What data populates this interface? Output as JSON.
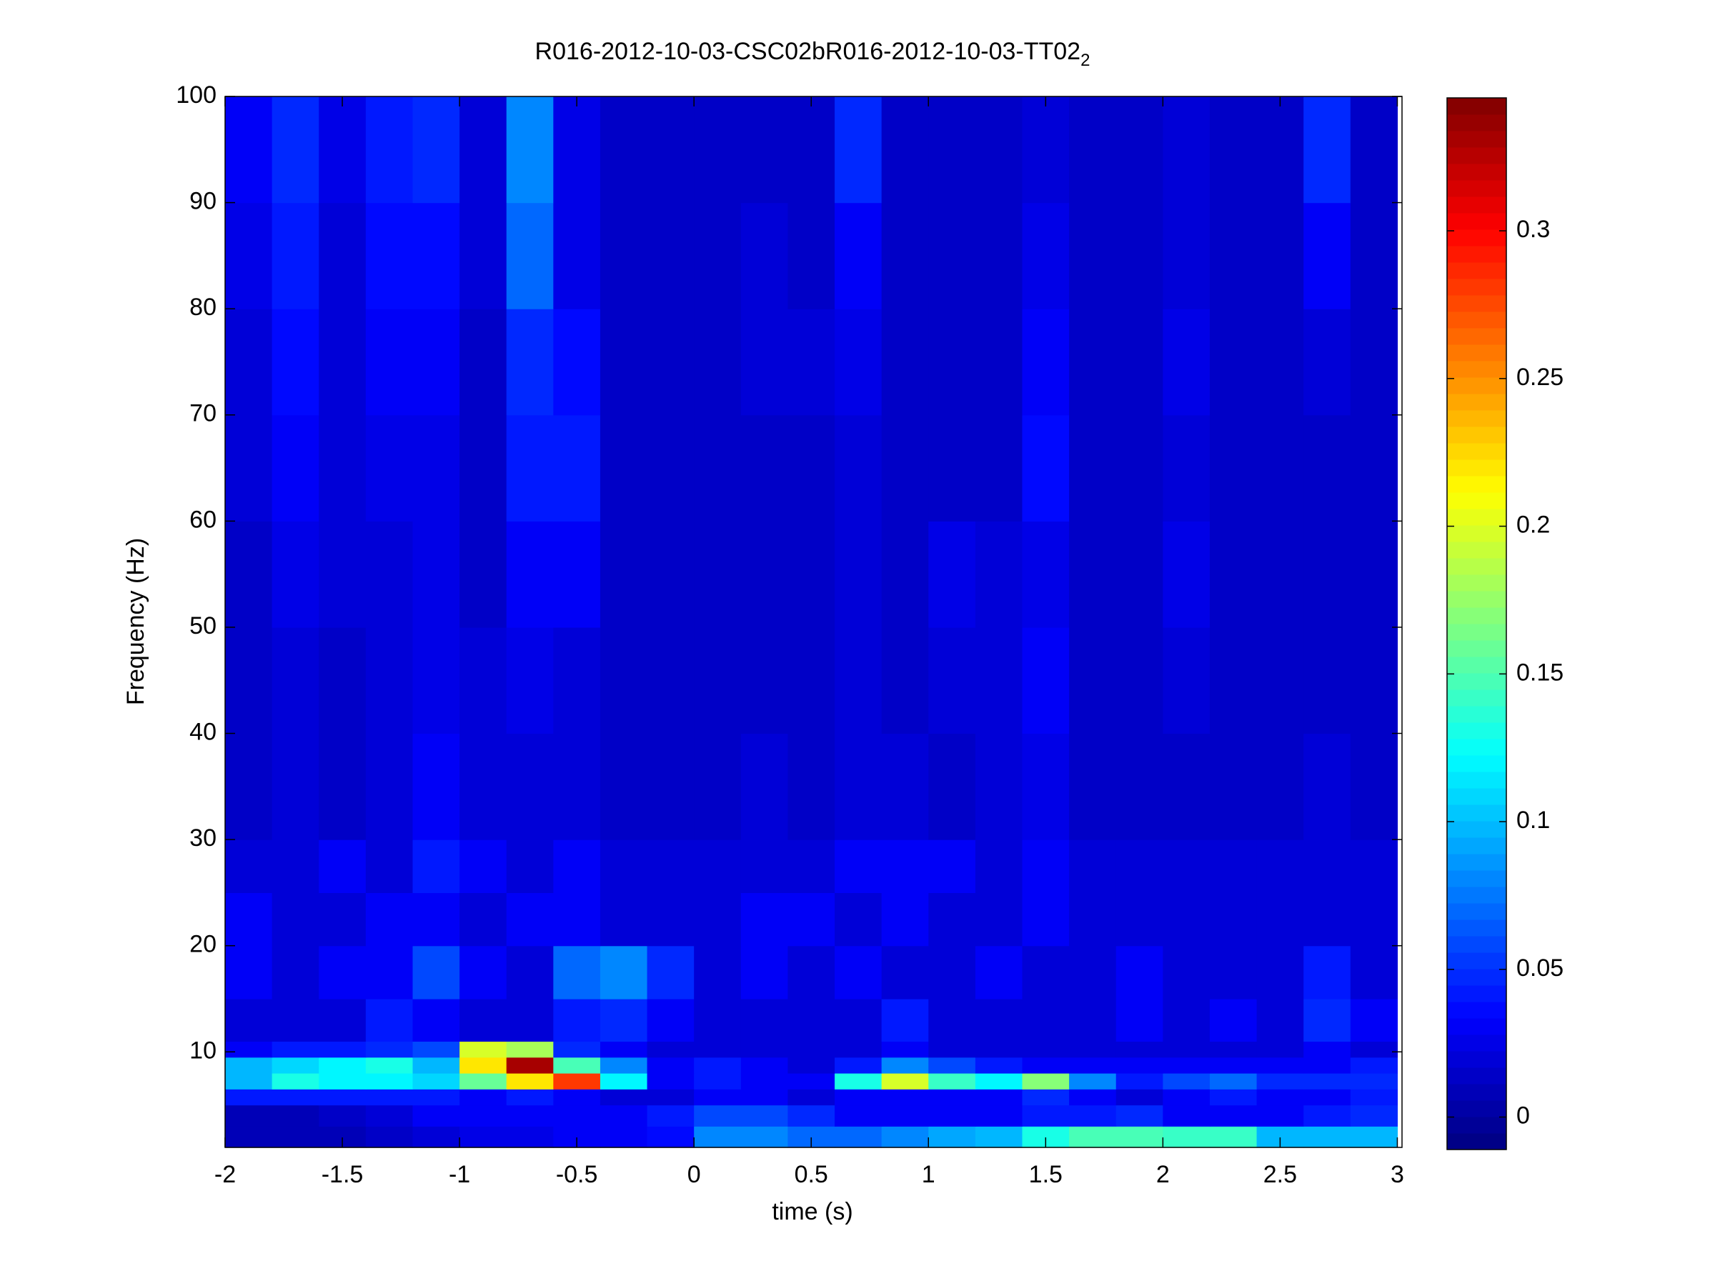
{
  "chart_data": {
    "type": "heatmap",
    "title": "R016-2012-10-03-CSC02bR016-2012-10-03-TT02",
    "title_subscript": "2",
    "x_label": "time (s)",
    "y_label": "Frequency (Hz)",
    "colormap": "jet",
    "xlim": [
      -2,
      3.02
    ],
    "ylim": [
      1,
      100
    ],
    "clim": [
      -0.011,
      0.345
    ],
    "xticks": [
      -2,
      -1.5,
      -1,
      -0.5,
      0,
      0.5,
      1,
      1.5,
      2,
      2.5,
      3
    ],
    "yticks": [
      10,
      20,
      30,
      40,
      50,
      60,
      70,
      80,
      90,
      100
    ],
    "cticks": [
      0,
      0.05,
      0.1,
      0.15,
      0.2,
      0.25,
      0.3
    ],
    "xbins": [
      -2,
      -1.8,
      -1.6,
      -1.4,
      -1.2,
      -1,
      -0.8,
      -0.6,
      -0.4,
      -0.2,
      0,
      0.2,
      0.4,
      0.6,
      0.8,
      1,
      1.2,
      1.4,
      1.6,
      1.8,
      2,
      2.2,
      2.4,
      2.6,
      2.8,
      3
    ],
    "ybins": [
      1,
      3,
      5,
      6.5,
      8,
      9.5,
      11,
      15,
      20,
      25,
      30,
      40,
      50,
      60,
      70,
      80,
      90,
      100
    ],
    "values": [
      [
        0.01,
        0.01,
        0.01,
        0.015,
        0.02,
        0.025,
        0.025,
        0.03,
        0.03,
        0.035,
        0.08,
        0.08,
        0.07,
        0.07,
        0.08,
        0.09,
        0.1,
        0.13,
        0.15,
        0.15,
        0.14,
        0.14,
        0.1,
        0.1,
        0.1
      ],
      [
        0.01,
        0.01,
        0.015,
        0.02,
        0.03,
        0.03,
        0.03,
        0.03,
        0.03,
        0.04,
        0.06,
        0.06,
        0.05,
        0.03,
        0.03,
        0.03,
        0.03,
        0.04,
        0.04,
        0.05,
        0.03,
        0.03,
        0.03,
        0.04,
        0.05
      ],
      [
        0.04,
        0.04,
        0.04,
        0.04,
        0.04,
        0.03,
        0.04,
        0.03,
        0.02,
        0.02,
        0.03,
        0.03,
        0.02,
        0.03,
        0.03,
        0.03,
        0.03,
        0.05,
        0.03,
        0.02,
        0.03,
        0.04,
        0.03,
        0.03,
        0.04
      ],
      [
        0.1,
        0.13,
        0.12,
        0.12,
        0.11,
        0.16,
        0.22,
        0.28,
        0.12,
        0.03,
        0.04,
        0.03,
        0.03,
        0.13,
        0.2,
        0.14,
        0.12,
        0.17,
        0.08,
        0.04,
        0.06,
        0.07,
        0.05,
        0.05,
        0.05
      ],
      [
        0.1,
        0.11,
        0.12,
        0.13,
        0.1,
        0.22,
        0.33,
        0.15,
        0.08,
        0.03,
        0.04,
        0.03,
        0.02,
        0.04,
        0.08,
        0.06,
        0.04,
        0.03,
        0.03,
        0.03,
        0.03,
        0.03,
        0.03,
        0.03,
        0.04
      ],
      [
        0.03,
        0.04,
        0.04,
        0.05,
        0.06,
        0.2,
        0.18,
        0.05,
        0.03,
        0.02,
        0.02,
        0.02,
        0.02,
        0.02,
        0.03,
        0.02,
        0.02,
        0.02,
        0.02,
        0.02,
        0.02,
        0.02,
        0.02,
        0.03,
        0.02
      ],
      [
        0.02,
        0.02,
        0.02,
        0.04,
        0.03,
        0.02,
        0.02,
        0.04,
        0.05,
        0.03,
        0.02,
        0.02,
        0.02,
        0.02,
        0.04,
        0.02,
        0.02,
        0.02,
        0.02,
        0.03,
        0.02,
        0.03,
        0.02,
        0.05,
        0.03
      ],
      [
        0.03,
        0.02,
        0.03,
        0.03,
        0.06,
        0.03,
        0.02,
        0.07,
        0.08,
        0.05,
        0.02,
        0.03,
        0.02,
        0.03,
        0.02,
        0.02,
        0.03,
        0.02,
        0.02,
        0.03,
        0.02,
        0.02,
        0.02,
        0.04,
        0.02
      ],
      [
        0.03,
        0.02,
        0.02,
        0.03,
        0.03,
        0.02,
        0.03,
        0.03,
        0.02,
        0.02,
        0.02,
        0.03,
        0.03,
        0.02,
        0.03,
        0.02,
        0.02,
        0.03,
        0.02,
        0.02,
        0.02,
        0.02,
        0.02,
        0.02,
        0.02
      ],
      [
        0.02,
        0.02,
        0.03,
        0.02,
        0.04,
        0.03,
        0.02,
        0.03,
        0.02,
        0.02,
        0.02,
        0.02,
        0.02,
        0.03,
        0.03,
        0.03,
        0.02,
        0.03,
        0.02,
        0.02,
        0.02,
        0.02,
        0.02,
        0.02,
        0.02
      ],
      [
        0.015,
        0.02,
        0.015,
        0.02,
        0.03,
        0.02,
        0.02,
        0.02,
        0.015,
        0.015,
        0.015,
        0.02,
        0.015,
        0.02,
        0.02,
        0.015,
        0.02,
        0.025,
        0.015,
        0.015,
        0.015,
        0.015,
        0.015,
        0.02,
        0.015
      ],
      [
        0.015,
        0.02,
        0.015,
        0.02,
        0.025,
        0.02,
        0.025,
        0.02,
        0.015,
        0.015,
        0.015,
        0.015,
        0.015,
        0.02,
        0.015,
        0.02,
        0.02,
        0.03,
        0.015,
        0.015,
        0.02,
        0.015,
        0.015,
        0.015,
        0.015
      ],
      [
        0.015,
        0.025,
        0.02,
        0.02,
        0.025,
        0.015,
        0.03,
        0.03,
        0.015,
        0.015,
        0.015,
        0.015,
        0.015,
        0.02,
        0.015,
        0.025,
        0.02,
        0.025,
        0.015,
        0.015,
        0.025,
        0.015,
        0.015,
        0.015,
        0.015
      ],
      [
        0.02,
        0.03,
        0.02,
        0.025,
        0.025,
        0.015,
        0.04,
        0.04,
        0.015,
        0.015,
        0.015,
        0.015,
        0.015,
        0.02,
        0.015,
        0.015,
        0.015,
        0.035,
        0.015,
        0.015,
        0.02,
        0.015,
        0.015,
        0.015,
        0.015
      ],
      [
        0.02,
        0.035,
        0.02,
        0.03,
        0.03,
        0.015,
        0.05,
        0.035,
        0.015,
        0.015,
        0.015,
        0.02,
        0.02,
        0.025,
        0.015,
        0.015,
        0.015,
        0.03,
        0.015,
        0.015,
        0.025,
        0.015,
        0.015,
        0.02,
        0.015
      ],
      [
        0.025,
        0.04,
        0.02,
        0.035,
        0.035,
        0.02,
        0.07,
        0.025,
        0.015,
        0.015,
        0.015,
        0.02,
        0.015,
        0.03,
        0.015,
        0.015,
        0.015,
        0.025,
        0.015,
        0.015,
        0.02,
        0.015,
        0.015,
        0.03,
        0.015
      ],
      [
        0.03,
        0.045,
        0.025,
        0.04,
        0.045,
        0.02,
        0.08,
        0.025,
        0.015,
        0.015,
        0.015,
        0.015,
        0.015,
        0.05,
        0.015,
        0.015,
        0.015,
        0.02,
        0.015,
        0.015,
        0.02,
        0.015,
        0.015,
        0.045,
        0.015
      ]
    ]
  }
}
